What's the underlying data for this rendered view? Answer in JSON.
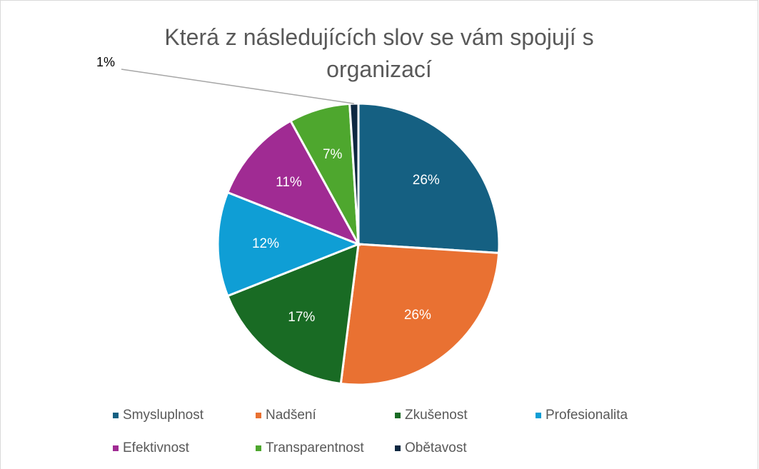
{
  "chart_data": {
    "type": "pie",
    "title": "Která z následujících slov se vám spojují s organizací",
    "categories": [
      "Smysluplnost",
      "Nadšení",
      "Zkušenost",
      "Profesionalita",
      "Efektivnost",
      "Transparentnost",
      "Obětavost"
    ],
    "values": [
      26,
      26,
      17,
      12,
      11,
      7,
      1
    ],
    "value_labels": [
      "26%",
      "26%",
      "17%",
      "12%",
      "11%",
      "7%",
      "1%"
    ],
    "colors": [
      "#156082",
      "#e97132",
      "#196b24",
      "#0f9ed5",
      "#a02b93",
      "#4ea72e",
      "#0e2841"
    ],
    "legend": "bottom"
  }
}
